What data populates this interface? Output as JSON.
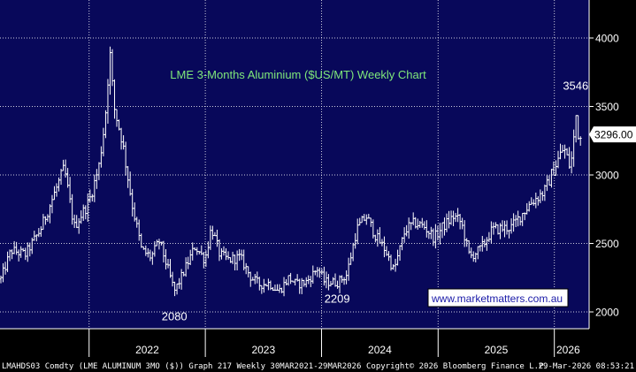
{
  "chart_data": {
    "type": "ohlc",
    "title": "LME 3-Months Aluminium ($US/MT) Weekly Chart",
    "website": "www.marketmatters.com.au",
    "ylim": [
      1900,
      4180
    ],
    "y_ticks": [
      2000,
      2500,
      3000,
      3500,
      4000
    ],
    "y_tick_labels": [
      "2000",
      "2500",
      "3000",
      "3500",
      "4000"
    ],
    "x_start": "2021-03-30",
    "x_end": "2026-03-29",
    "year_labels": [
      "2022",
      "2023",
      "2024",
      "2025",
      "2026"
    ],
    "year_dividers": [
      "2022-01-01",
      "2023-01-01",
      "2024-01-01",
      "2025-01-01",
      "2026-01-01"
    ],
    "last_price_label": "3296.00",
    "last_price": 3296,
    "annotations": [
      {
        "text": "3546",
        "date": "2026-03-09",
        "value": 3546
      },
      {
        "text": "2080",
        "date": "2022-09-26",
        "value": 2080
      },
      {
        "text": "2209",
        "date": "2024-02-19",
        "value": 2209
      }
    ],
    "series": [
      {
        "points": [
          [
            "2021-03-30",
            2240
          ],
          [
            "2021-05-01",
            2450
          ],
          [
            "2021-06-15",
            2420
          ],
          [
            "2021-08-01",
            2600
          ],
          [
            "2021-10-15",
            3050
          ],
          [
            "2021-11-15",
            2620
          ],
          [
            "2021-12-31",
            2800
          ],
          [
            "2022-01-31",
            3050
          ],
          [
            "2022-02-20",
            3400
          ],
          [
            "2022-03-07",
            3900
          ],
          [
            "2022-03-20",
            3500
          ],
          [
            "2022-04-15",
            3250
          ],
          [
            "2022-05-15",
            2800
          ],
          [
            "2022-06-15",
            2450
          ],
          [
            "2022-07-15",
            2400
          ],
          [
            "2022-08-10",
            2520
          ],
          [
            "2022-09-26",
            2150
          ],
          [
            "2022-10-15",
            2240
          ],
          [
            "2022-11-30",
            2480
          ],
          [
            "2022-12-31",
            2380
          ],
          [
            "2023-01-20",
            2620
          ],
          [
            "2023-02-15",
            2420
          ],
          [
            "2023-03-15",
            2380
          ],
          [
            "2023-04-20",
            2400
          ],
          [
            "2023-05-25",
            2250
          ],
          [
            "2023-06-20",
            2200
          ],
          [
            "2023-07-20",
            2210
          ],
          [
            "2023-08-20",
            2150
          ],
          [
            "2023-09-20",
            2250
          ],
          [
            "2023-10-15",
            2200
          ],
          [
            "2023-11-15",
            2220
          ],
          [
            "2023-12-20",
            2320
          ],
          [
            "2024-01-10",
            2220
          ],
          [
            "2024-02-19",
            2215
          ],
          [
            "2024-03-20",
            2270
          ],
          [
            "2024-04-20",
            2600
          ],
          [
            "2024-05-20",
            2700
          ],
          [
            "2024-06-20",
            2550
          ],
          [
            "2024-07-20",
            2450
          ],
          [
            "2024-08-15",
            2300
          ],
          [
            "2024-09-20",
            2600
          ],
          [
            "2024-10-20",
            2650
          ],
          [
            "2024-11-20",
            2620
          ],
          [
            "2024-12-20",
            2540
          ],
          [
            "2025-01-15",
            2620
          ],
          [
            "2025-02-20",
            2700
          ],
          [
            "2025-03-15",
            2650
          ],
          [
            "2025-04-10",
            2400
          ],
          [
            "2025-05-15",
            2460
          ],
          [
            "2025-06-20",
            2600
          ],
          [
            "2025-08-20",
            2620
          ],
          [
            "2025-10-20",
            2800
          ],
          [
            "2025-12-01",
            2880
          ],
          [
            "2026-01-10",
            3100
          ],
          [
            "2026-01-31",
            3200
          ],
          [
            "2026-02-20",
            3050
          ],
          [
            "2026-03-01",
            3200
          ],
          [
            "2026-03-09",
            3450
          ],
          [
            "2026-03-20",
            3250
          ],
          [
            "2026-03-29",
            3296
          ]
        ]
      }
    ]
  },
  "footer": {
    "left": "LMAHDS03 Comdty (LME ALUMINUM 3MO ($)) Graph 217 Weekly 30MAR2021-29MAR2026",
    "center": "Copyright© 2026 Bloomberg Finance L.P.",
    "right": "29-Mar-2026 08:53:21"
  },
  "colors": {
    "plot_bg": "#08085a",
    "frame_bg": "#000000",
    "bars": "#ffffff",
    "title": "#7fe87a",
    "tag_bg": "#ffffff",
    "tag_text": "#000000"
  }
}
